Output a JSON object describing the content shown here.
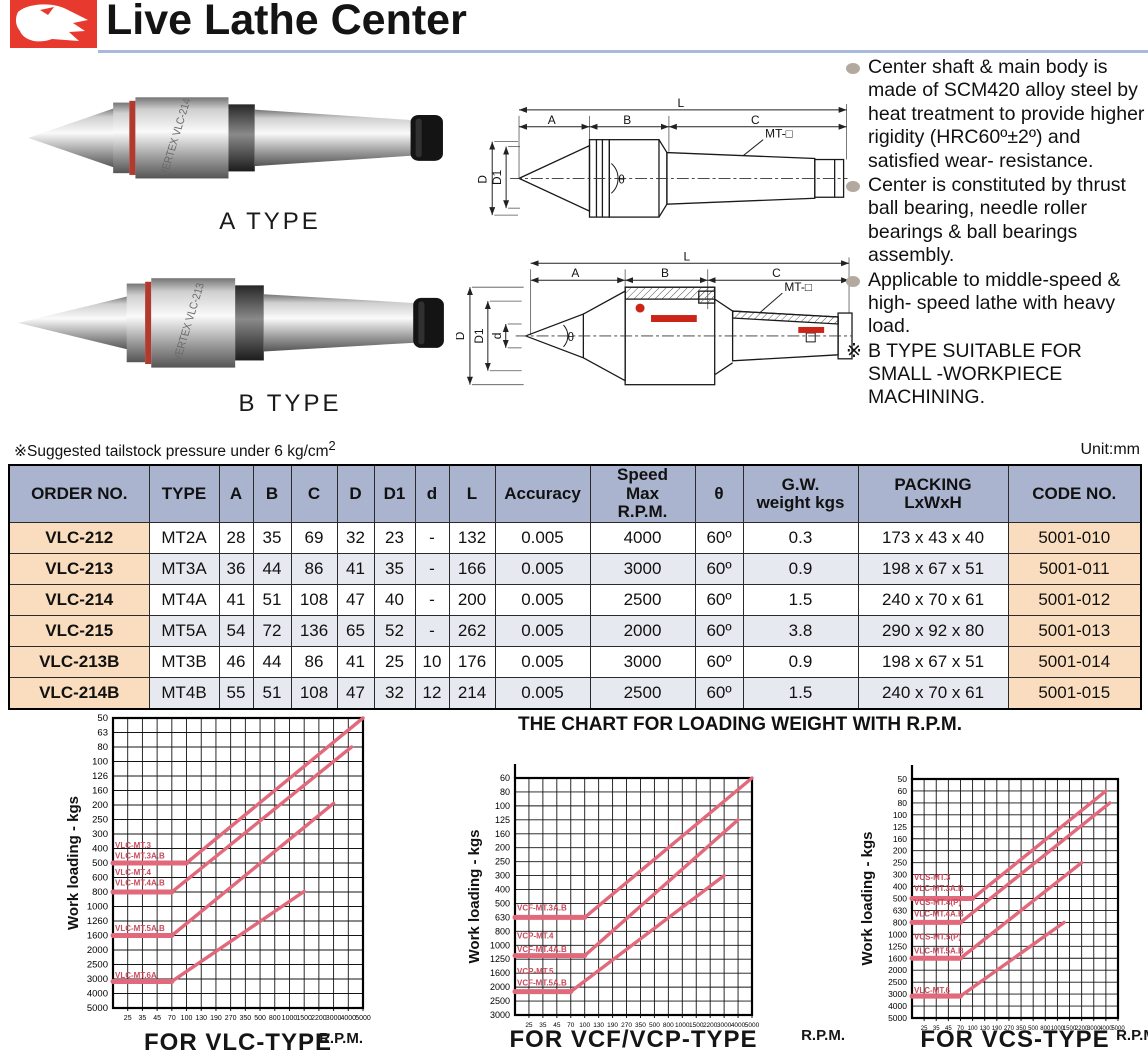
{
  "header": {
    "title": "Live Lathe Center",
    "logo": "eagle-logo"
  },
  "photos": {
    "a_caption": "A  TYPE",
    "b_caption": "B  TYPE",
    "brand_a": "VERTEX VLC-214",
    "brand_b": "VERTEX VLC-213"
  },
  "diagrams": {
    "labels": {
      "L": "L",
      "A": "A",
      "B": "B",
      "C": "C",
      "D": "D",
      "D1": "D1",
      "d": "d",
      "theta": "θ",
      "mt": "MT-□"
    }
  },
  "features": {
    "items": [
      "Center  shaft  &  main body is made of SCM420 alloy steel  by heat treatment to provide higher rigidity (HRC60º±2º) and satisfied wear- resistance.",
      "Center is constituted by thrust ball bearing, needle roller  bearings  &  ball bearings assembly.",
      "Applicable to middle-speed & high- speed lathe with heavy load."
    ],
    "special_marker": "※",
    "special": "B TYPE SUITABLE FOR SMALL -WORKPIECE MACHINING."
  },
  "table": {
    "pressure_note": "※Suggested tailstock pressure under 6 kg/cm",
    "pressure_note_sup": "2",
    "unit_note": "Unit:mm",
    "headers": [
      "ORDER NO.",
      "TYPE",
      "A",
      "B",
      "C",
      "D",
      "D1",
      "d",
      "L",
      "Accuracy",
      "Speed\nMax\nR.P.M.",
      "θ",
      "G.W.\nweight kgs",
      "PACKING\nLxWxH",
      "CODE NO."
    ],
    "rows": [
      [
        "VLC-212",
        "MT2A",
        "28",
        "35",
        "69",
        "32",
        "23",
        "-",
        "132",
        "0.005",
        "4000",
        "60º",
        "0.3",
        "173 x 43 x 40",
        "5001-010"
      ],
      [
        "VLC-213",
        "MT3A",
        "36",
        "44",
        "86",
        "41",
        "35",
        "-",
        "166",
        "0.005",
        "3000",
        "60º",
        "0.9",
        "198 x 67 x 51",
        "5001-011"
      ],
      [
        "VLC-214",
        "MT4A",
        "41",
        "51",
        "108",
        "47",
        "40",
        "-",
        "200",
        "0.005",
        "2500",
        "60º",
        "1.5",
        "240 x 70 x 61",
        "5001-012"
      ],
      [
        "VLC-215",
        "MT5A",
        "54",
        "72",
        "136",
        "65",
        "52",
        "-",
        "262",
        "0.005",
        "2000",
        "60º",
        "3.8",
        "290 x 92 x 80",
        "5001-013"
      ],
      [
        "VLC-213B",
        "MT3B",
        "46",
        "44",
        "86",
        "41",
        "25",
        "10",
        "176",
        "0.005",
        "3000",
        "60º",
        "0.9",
        "198 x 67 x 51",
        "5001-014"
      ],
      [
        "VLC-214B",
        "MT4B",
        "55",
        "51",
        "108",
        "47",
        "32",
        "12",
        "214",
        "0.005",
        "2500",
        "60º",
        "1.5",
        "240 x 70 x 61",
        "5001-015"
      ]
    ]
  },
  "charts_title": "THE CHART FOR LOADING WEIGHT WITH R.P.M.",
  "chart_data": [
    {
      "type": "line",
      "title": "FOR VLC-TYPE",
      "xlabel": "R.P.M.",
      "ylabel": "Work loading - kgs",
      "x_ticks": [
        25,
        35,
        45,
        70,
        100,
        130,
        190,
        270,
        350,
        500,
        800,
        1000,
        1500,
        2200,
        3000,
        4000,
        5000
      ],
      "y_ticks": [
        50,
        63,
        80,
        100,
        126,
        160,
        200,
        250,
        300,
        400,
        500,
        600,
        800,
        1000,
        1260,
        1600,
        2000,
        2500,
        3000,
        4000,
        5000
      ],
      "y_axis_inverted": true,
      "grid": true,
      "line_color": "#e2697b",
      "series": [
        {
          "name": "VLC-MT.3 / VLC-MT.3A.B",
          "points": [
            [
              0,
              500
            ],
            [
              100,
              500
            ],
            [
              5000,
              50
            ]
          ]
        },
        {
          "name": "VLC-MT.4 / VLC-MT.4A.B",
          "points": [
            [
              0,
              800
            ],
            [
              70,
              800
            ],
            [
              4200,
              80
            ]
          ]
        },
        {
          "name": "VLC-MT.5A.B",
          "points": [
            [
              0,
              1600
            ],
            [
              70,
              1600
            ],
            [
              3000,
              195
            ]
          ]
        },
        {
          "name": "VLC-MT.6A",
          "points": [
            [
              0,
              3150
            ],
            [
              70,
              3150
            ],
            [
              1500,
              790
            ]
          ]
        }
      ],
      "annotations": [
        {
          "text": "VLC-MT.3",
          "yv": 395
        },
        {
          "text": "VLC-MT.3A.B",
          "yv": 465
        },
        {
          "text": "VLC-MT.4",
          "yv": 580
        },
        {
          "text": "VLC-MT.4A.B",
          "yv": 700
        },
        {
          "text": "VLC-MT.5A.B",
          "yv": 1490
        },
        {
          "text": "VLC-MT.6A",
          "yv": 2960
        }
      ]
    },
    {
      "type": "line",
      "title": "FOR VCF/VCP-TYPE",
      "xlabel": "R.P.M.",
      "ylabel": "Work loading - kgs",
      "x_ticks": [
        25,
        35,
        45,
        70,
        100,
        130,
        190,
        270,
        350,
        500,
        800,
        1000,
        1500,
        2200,
        3000,
        4000,
        5000
      ],
      "y_ticks": [
        60,
        80,
        100,
        125,
        160,
        200,
        250,
        300,
        400,
        500,
        630,
        800,
        1000,
        1250,
        1600,
        2000,
        2500,
        3000
      ],
      "y_axis_inverted": true,
      "grid": true,
      "line_color": "#e2697b",
      "series": [
        {
          "name": "VCF-MT.3A.B",
          "points": [
            [
              0,
              630
            ],
            [
              100,
              630
            ],
            [
              5000,
              60
            ]
          ]
        },
        {
          "name": "VCP-MT.4 / VCF-MT.4A.B",
          "points": [
            [
              0,
              1180
            ],
            [
              100,
              1180
            ],
            [
              4000,
              125
            ]
          ]
        },
        {
          "name": "VCP-MT.5 / VCF-MT.5A.B",
          "points": [
            [
              0,
              2150
            ],
            [
              70,
              2150
            ],
            [
              3000,
              300
            ]
          ]
        }
      ],
      "annotations": [
        {
          "text": "VCF-MT.3A.B",
          "yv": 560
        },
        {
          "text": "VCP-MT.4",
          "yv": 900
        },
        {
          "text": "VCF-MT.4A.B",
          "yv": 1110
        },
        {
          "text": "VCP-MT.5",
          "yv": 1620
        },
        {
          "text": "VCF-MT.5A.B",
          "yv": 1950
        }
      ]
    },
    {
      "type": "line",
      "title": "FOR VCS-TYPE",
      "xlabel": "R.P.M.",
      "ylabel": "Work loading - kgs",
      "x_ticks": [
        25,
        35,
        45,
        70,
        100,
        130,
        190,
        270,
        350,
        500,
        800,
        1000,
        1500,
        2200,
        3000,
        4000,
        5000
      ],
      "y_ticks": [
        50,
        60,
        80,
        100,
        125,
        160,
        200,
        250,
        300,
        400,
        500,
        630,
        800,
        1000,
        1250,
        1600,
        2000,
        2500,
        3000,
        4000,
        5000
      ],
      "y_axis_inverted": true,
      "grid": true,
      "line_color": "#e2697b",
      "series": [
        {
          "name": "VCS-MT.3 / VLC-MT.3A.B",
          "points": [
            [
              0,
              500
            ],
            [
              100,
              500
            ],
            [
              4000,
              60
            ]
          ]
        },
        {
          "name": "VCS-MT.4(P) / VLC-MT.4A.B",
          "points": [
            [
              0,
              800
            ],
            [
              70,
              800
            ],
            [
              4300,
              80
            ]
          ]
        },
        {
          "name": "VCS-MT.5(P) / VLC-MT.5A.B",
          "points": [
            [
              0,
              1600
            ],
            [
              70,
              1600
            ],
            [
              2200,
              250
            ]
          ]
        },
        {
          "name": "VLC-MT.6",
          "points": [
            [
              0,
              3150
            ],
            [
              70,
              3150
            ],
            [
              1250,
              800
            ]
          ]
        }
      ],
      "annotations": [
        {
          "text": "VCS-MT.3",
          "yv": 340
        },
        {
          "text": "VLC-MT.3A.B",
          "yv": 435
        },
        {
          "text": "VCS-MT.4(P)",
          "yv": 565
        },
        {
          "text": "VLC-MT.4A.B",
          "yv": 710
        },
        {
          "text": "VCS-MT.5(P)",
          "yv": 1100
        },
        {
          "text": "VLC-MT.5A.B",
          "yv": 1450
        },
        {
          "text": "VLC-MT.6",
          "yv": 2950
        }
      ]
    }
  ]
}
